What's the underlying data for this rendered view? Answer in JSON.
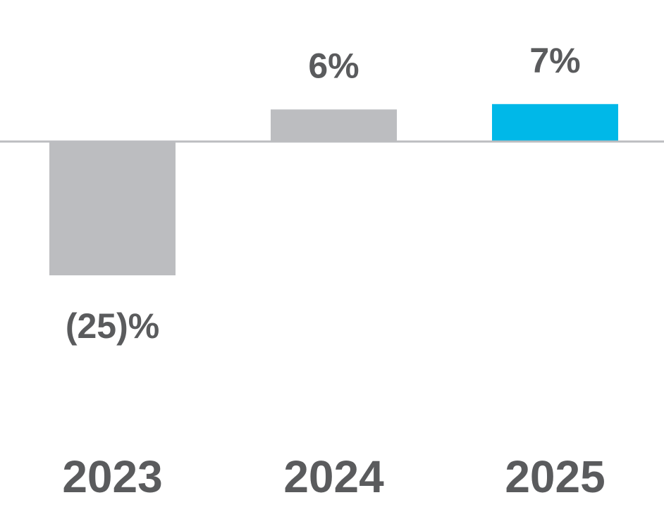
{
  "chart_data": {
    "type": "bar",
    "categories": [
      "2023",
      "2024",
      "2025"
    ],
    "values": [
      -25,
      6,
      7
    ],
    "value_labels": [
      "(25)%",
      "6%",
      "7%"
    ],
    "colors": [
      "#bcbdc0",
      "#bcbdc0",
      "#00b8e8"
    ]
  }
}
